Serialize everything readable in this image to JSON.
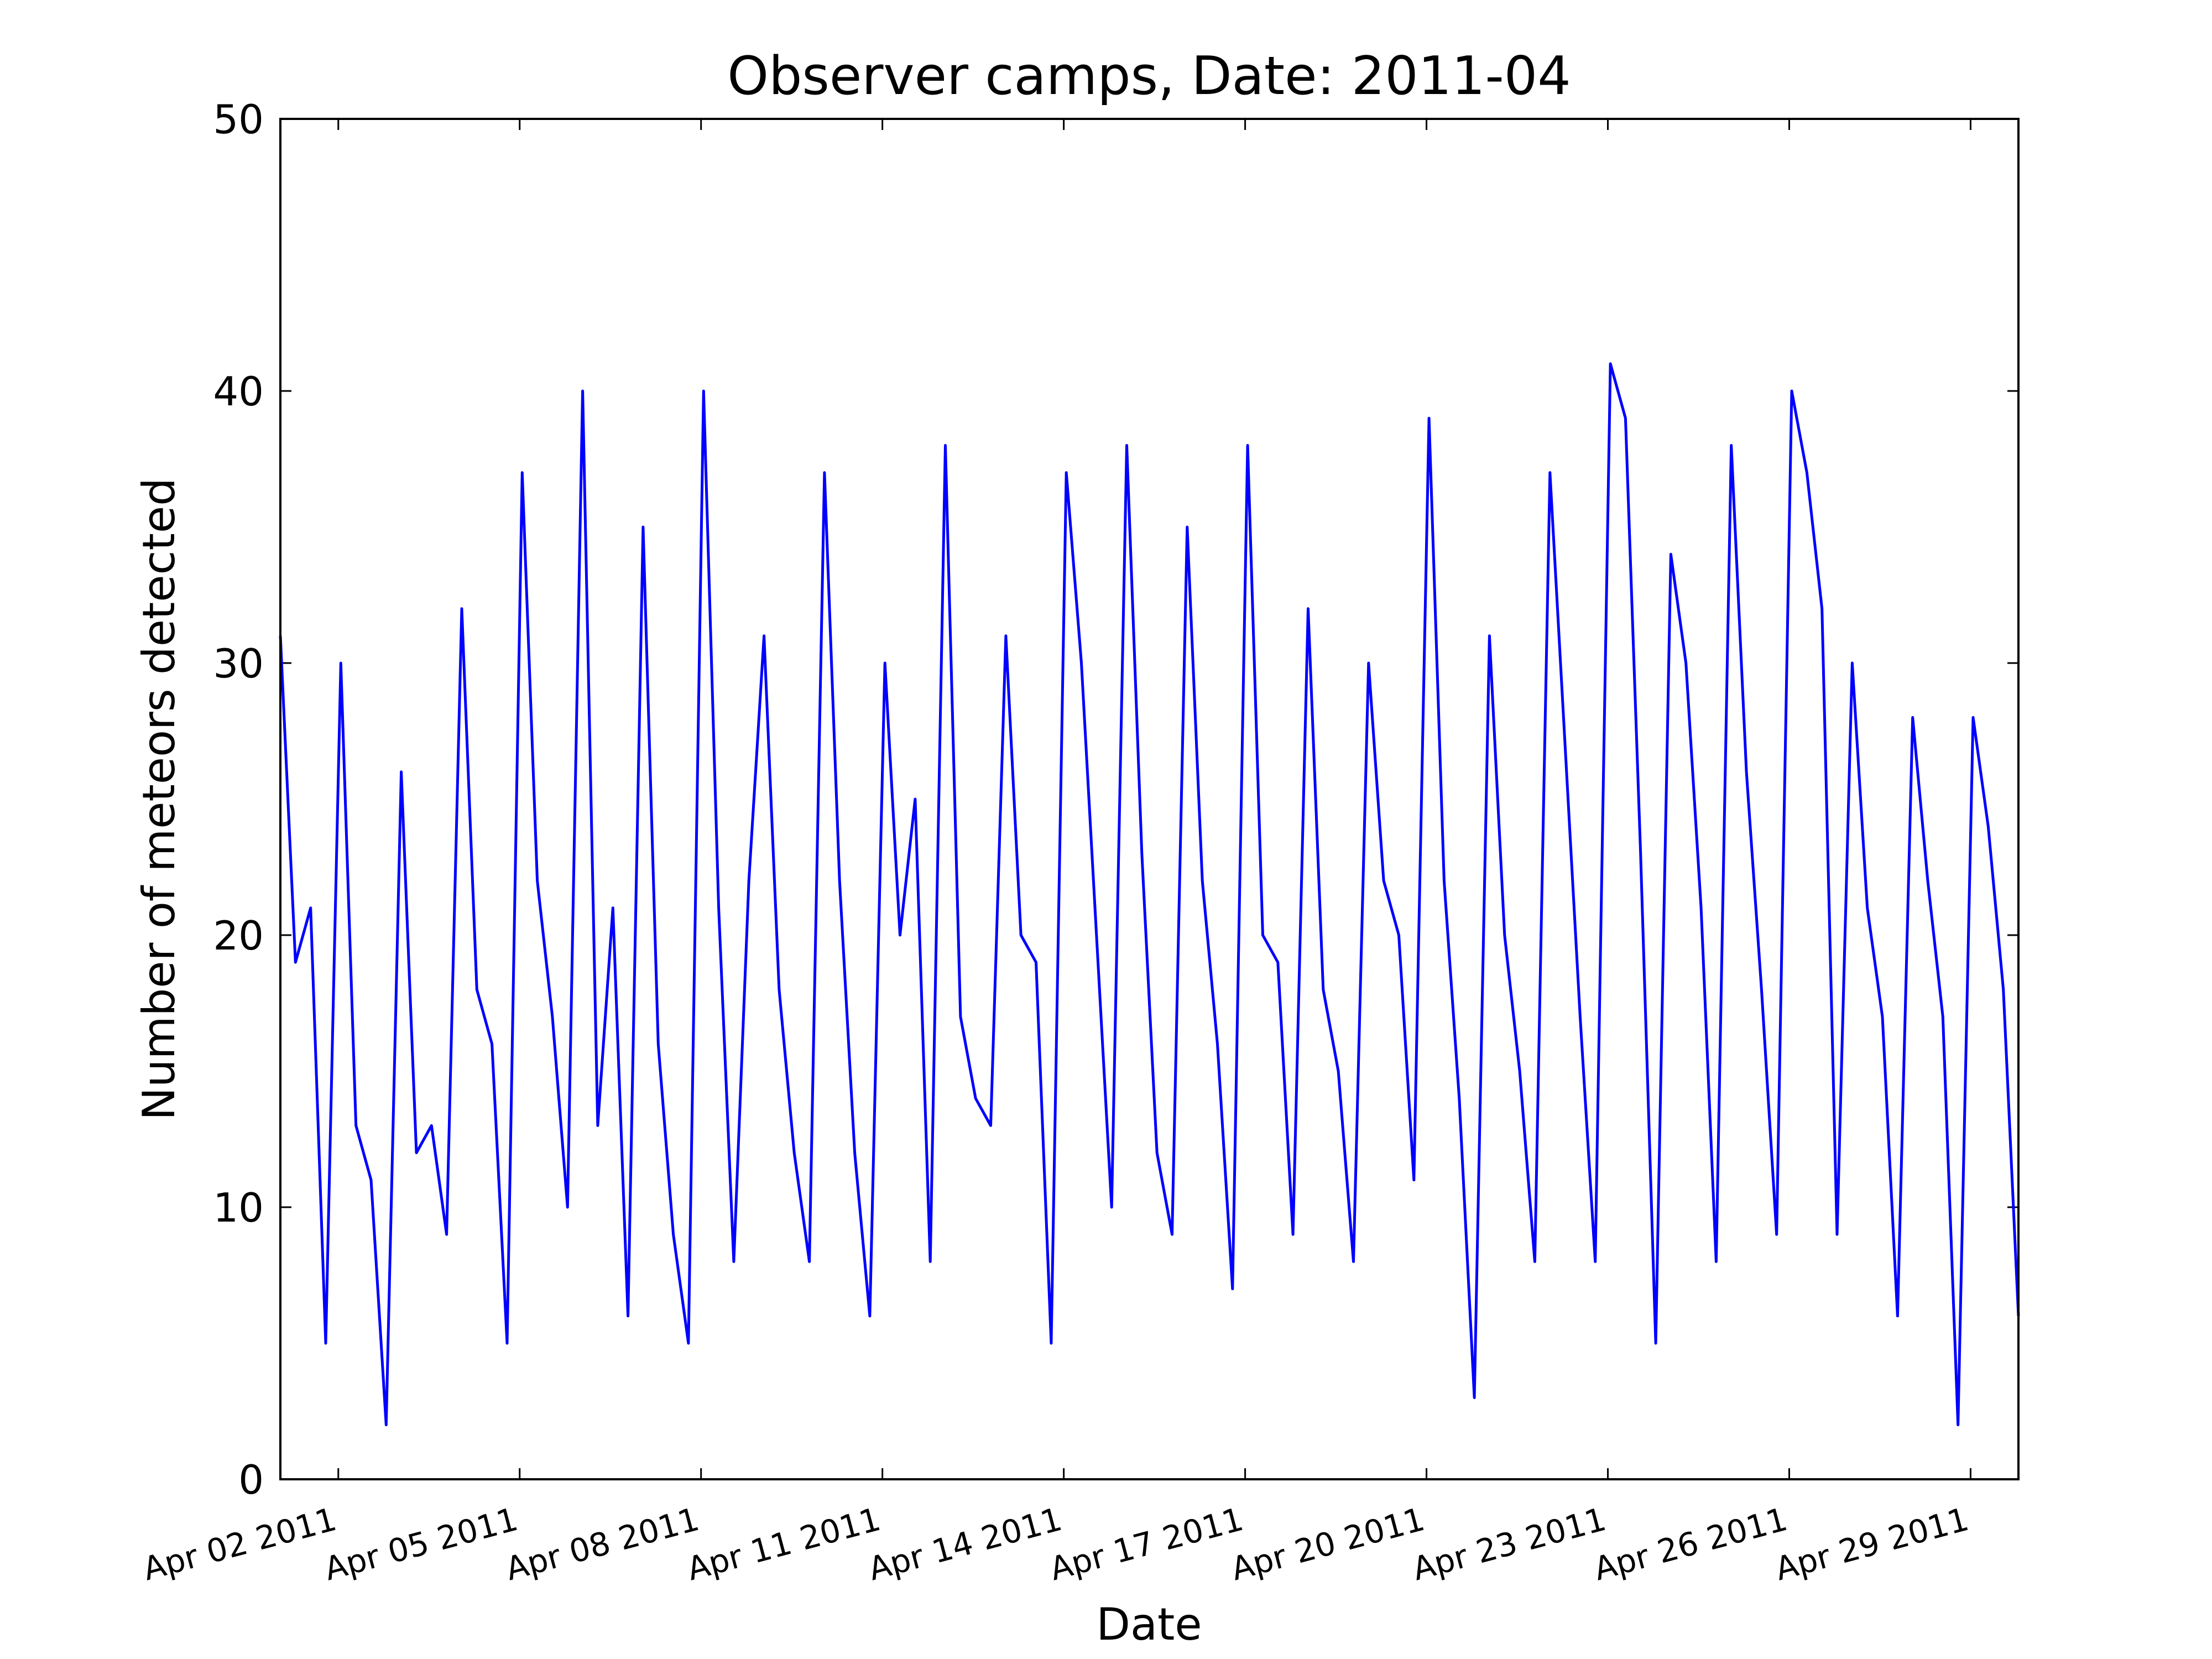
{
  "chart_data": {
    "type": "line",
    "title": "Observer camps, Date: 2011-04",
    "x_label": "Date",
    "y_label": "Number of meteors detected",
    "color": "#0000ff",
    "grid": false,
    "x": [
      "2011-04-01 01:00",
      "2011-04-01 07:00",
      "2011-04-01 13:00",
      "2011-04-01 19:00",
      "2011-04-02 01:00",
      "2011-04-02 07:00",
      "2011-04-02 13:00",
      "2011-04-02 19:00",
      "2011-04-03 01:00",
      "2011-04-03 07:00",
      "2011-04-03 13:00",
      "2011-04-03 19:00",
      "2011-04-04 01:00",
      "2011-04-04 07:00",
      "2011-04-04 13:00",
      "2011-04-04 19:00",
      "2011-04-05 01:00",
      "2011-04-05 07:00",
      "2011-04-05 13:00",
      "2011-04-05 19:00",
      "2011-04-06 01:00",
      "2011-04-06 07:00",
      "2011-04-06 13:00",
      "2011-04-06 19:00",
      "2011-04-07 01:00",
      "2011-04-07 07:00",
      "2011-04-07 13:00",
      "2011-04-07 19:00",
      "2011-04-08 01:00",
      "2011-04-08 07:00",
      "2011-04-08 13:00",
      "2011-04-08 19:00",
      "2011-04-09 01:00",
      "2011-04-09 07:00",
      "2011-04-09 13:00",
      "2011-04-09 19:00",
      "2011-04-10 01:00",
      "2011-04-10 07:00",
      "2011-04-10 13:00",
      "2011-04-10 19:00",
      "2011-04-11 01:00",
      "2011-04-11 07:00",
      "2011-04-11 13:00",
      "2011-04-11 19:00",
      "2011-04-12 01:00",
      "2011-04-12 07:00",
      "2011-04-12 13:00",
      "2011-04-12 19:00",
      "2011-04-13 01:00",
      "2011-04-13 07:00",
      "2011-04-13 13:00",
      "2011-04-13 19:00",
      "2011-04-14 01:00",
      "2011-04-14 07:00",
      "2011-04-14 13:00",
      "2011-04-14 19:00",
      "2011-04-15 01:00",
      "2011-04-15 07:00",
      "2011-04-15 13:00",
      "2011-04-15 19:00",
      "2011-04-16 01:00",
      "2011-04-16 07:00",
      "2011-04-16 13:00",
      "2011-04-16 19:00",
      "2011-04-17 01:00",
      "2011-04-17 07:00",
      "2011-04-17 13:00",
      "2011-04-17 19:00",
      "2011-04-18 01:00",
      "2011-04-18 07:00",
      "2011-04-18 13:00",
      "2011-04-18 19:00",
      "2011-04-19 01:00",
      "2011-04-19 07:00",
      "2011-04-19 13:00",
      "2011-04-19 19:00",
      "2011-04-20 01:00",
      "2011-04-20 07:00",
      "2011-04-20 13:00",
      "2011-04-20 19:00",
      "2011-04-21 01:00",
      "2011-04-21 07:00",
      "2011-04-21 13:00",
      "2011-04-21 19:00",
      "2011-04-22 01:00",
      "2011-04-22 07:00",
      "2011-04-22 13:00",
      "2011-04-22 19:00",
      "2011-04-23 01:00",
      "2011-04-23 07:00",
      "2011-04-23 13:00",
      "2011-04-23 19:00",
      "2011-04-24 01:00",
      "2011-04-24 07:00",
      "2011-04-24 13:00",
      "2011-04-24 19:00",
      "2011-04-25 01:00",
      "2011-04-25 07:00",
      "2011-04-25 13:00",
      "2011-04-25 19:00",
      "2011-04-26 01:00",
      "2011-04-26 07:00",
      "2011-04-26 13:00",
      "2011-04-26 19:00",
      "2011-04-27 01:00",
      "2011-04-27 07:00",
      "2011-04-27 13:00",
      "2011-04-27 19:00",
      "2011-04-28 01:00",
      "2011-04-28 07:00",
      "2011-04-28 13:00",
      "2011-04-28 19:00",
      "2011-04-29 01:00",
      "2011-04-29 07:00",
      "2011-04-29 13:00",
      "2011-04-29 19:00"
    ],
    "values": [
      31,
      19,
      21,
      5,
      30,
      13,
      11,
      2,
      26,
      12,
      13,
      9,
      32,
      18,
      16,
      5,
      37,
      22,
      17,
      10,
      40,
      13,
      21,
      6,
      35,
      16,
      9,
      5,
      40,
      21,
      8,
      22,
      31,
      18,
      12,
      8,
      37,
      22,
      12,
      6,
      30,
      20,
      25,
      8,
      38,
      17,
      14,
      13,
      31,
      20,
      19,
      5,
      37,
      30,
      20,
      10,
      38,
      23,
      12,
      9,
      35,
      22,
      16,
      7,
      38,
      20,
      19,
      9,
      32,
      18,
      15,
      8,
      30,
      22,
      20,
      11,
      39,
      22,
      14,
      3,
      31,
      20,
      15,
      8,
      37,
      27,
      17,
      8,
      41,
      39,
      23,
      5,
      34,
      30,
      21,
      8,
      38,
      26,
      18,
      9,
      40,
      37,
      32,
      9,
      30,
      21,
      17,
      6,
      28,
      22,
      17,
      2,
      28,
      24,
      18,
      6
    ],
    "xlim": [
      "2011-04-01 01:00",
      "2011-04-29 19:00"
    ],
    "xticks": [
      {
        "value": "2011-04-02",
        "label": "Apr 02 2011"
      },
      {
        "value": "2011-04-05",
        "label": "Apr 05 2011"
      },
      {
        "value": "2011-04-08",
        "label": "Apr 08 2011"
      },
      {
        "value": "2011-04-11",
        "label": "Apr 11 2011"
      },
      {
        "value": "2011-04-14",
        "label": "Apr 14 2011"
      },
      {
        "value": "2011-04-17",
        "label": "Apr 17 2011"
      },
      {
        "value": "2011-04-20",
        "label": "Apr 20 2011"
      },
      {
        "value": "2011-04-23",
        "label": "Apr 23 2011"
      },
      {
        "value": "2011-04-26",
        "label": "Apr 26 2011"
      },
      {
        "value": "2011-04-29",
        "label": "Apr 29 2011"
      }
    ],
    "ylim": [
      0,
      50
    ],
    "yticks": [
      0,
      10,
      20,
      30,
      40,
      50
    ]
  }
}
